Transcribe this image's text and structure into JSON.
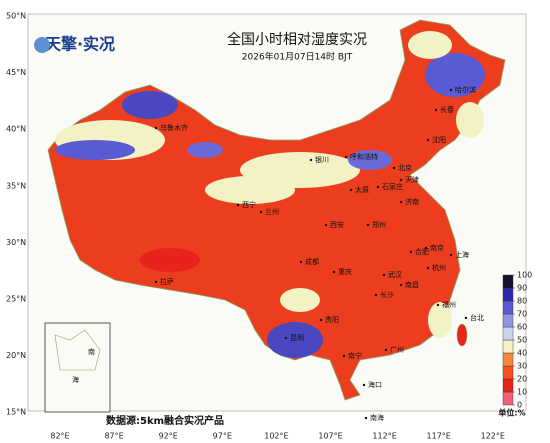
{
  "header": {
    "logo": "天擎·实况",
    "title": "全国小时相对湿度实况",
    "subtitle": "2026年01月07日14时 BJT"
  },
  "axes": {
    "lat_labels": [
      "50°N",
      "45°N",
      "40°N",
      "35°N",
      "30°N",
      "25°N",
      "20°N",
      "15°N"
    ],
    "lon_labels": [
      "82°E",
      "87°E",
      "92°E",
      "97°E",
      "102°E",
      "107°E",
      "112°E",
      "117°E",
      "122°E"
    ]
  },
  "legend": {
    "unit": "单位:%",
    "ticks": [
      0,
      10,
      20,
      30,
      40,
      50,
      60,
      70,
      80,
      90,
      100
    ],
    "colors": [
      "#f0607a",
      "#e8231c",
      "#f5501e",
      "#f7873a",
      "#f2f2c4",
      "#c9d4f0",
      "#8d96e0",
      "#5a5ad2",
      "#2e28a8",
      "#1a1030"
    ]
  },
  "cities": [
    "乌鲁木齐",
    "呼和浩特",
    "哈尔滨",
    "长春",
    "沈阳",
    "北京",
    "天津",
    "石家庄",
    "太原",
    "济南",
    "银川",
    "兰州",
    "西宁",
    "西安",
    "郑州",
    "合肥",
    "南京",
    "上海",
    "杭州",
    "武汉",
    "南昌",
    "长沙",
    "重庆",
    "成都",
    "贵阳",
    "昆明",
    "南宁",
    "广州",
    "福州",
    "台北",
    "海口",
    "拉萨",
    "南海"
  ],
  "inset": {
    "labels": [
      "南",
      "海"
    ]
  },
  "footer": {
    "source": "数据源:5km融合实况产品"
  }
}
